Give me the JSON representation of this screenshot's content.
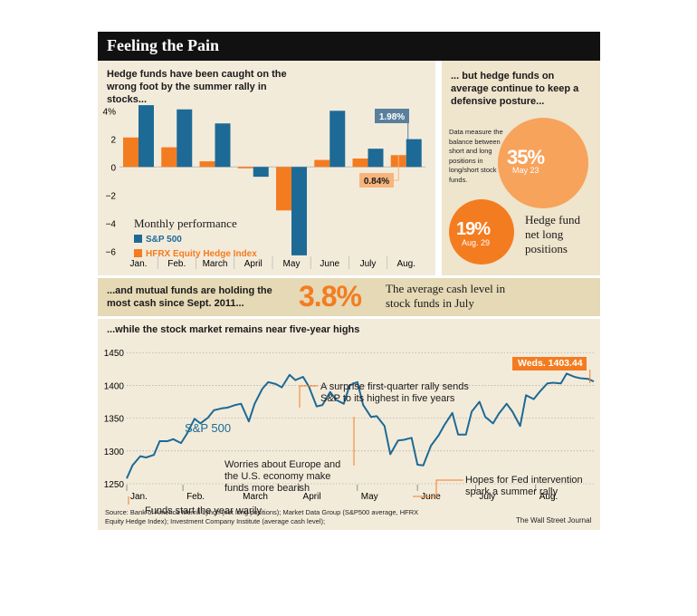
{
  "title": "Feeling the Pain",
  "left_heading": "Hedge funds have been caught on the wrong foot by the summer rally in stocks...",
  "right_heading": "... but hedge funds on average continue to keep a defensive posture...",
  "right_note": "Data measure the balance between short and long positions in long/short stock funds.",
  "bubbles": [
    {
      "value": "35%",
      "date": "May 23",
      "color": "#f7a35c"
    },
    {
      "value": "19%",
      "date": "Aug. 29",
      "color": "#f47c20"
    }
  ],
  "bubble_caption": "Hedge fund net long positions",
  "band_text": "...and mutual funds are holding the most cash since Sept. 2011...",
  "cash_value": "3.8%",
  "cash_caption": "The average cash level in stock funds in July",
  "bottom_heading": "...while the stock market remains near five-year highs",
  "source": "Source: Bank of America Merrill Lynch (net long positions); Market Data Group (S&P500 average, HFRX Equity Hedge Index); Investment Company Institute (average cash level);",
  "credit": "The Wall Street Journal",
  "colors": {
    "sp500": "#1d6a96",
    "hfrx": "#f47c20",
    "callout_blue": "#5a7f9c",
    "callout_orange": "#f7b47c"
  },
  "chart_data": [
    {
      "type": "bar",
      "title": "Monthly performance",
      "categories": [
        "Jan.",
        "Feb.",
        "March",
        "April",
        "May",
        "June",
        "July",
        "Aug."
      ],
      "series": [
        {
          "name": "S&P 500",
          "values": [
            4.4,
            4.1,
            3.1,
            -0.7,
            -6.3,
            4.0,
            1.3,
            1.98
          ]
        },
        {
          "name": "HFRX Equity Hedge Index",
          "values": [
            2.1,
            1.4,
            0.4,
            -0.1,
            -3.1,
            0.5,
            0.6,
            0.84
          ]
        }
      ],
      "yticks": [
        "4%",
        "2",
        "0",
        "−2",
        "−4",
        "−6"
      ],
      "yticks_values": [
        4,
        2,
        0,
        -2,
        -4,
        -6
      ],
      "ylim": [
        -6.5,
        4.6
      ],
      "callouts": [
        {
          "series": "S&P 500",
          "label": "1.98%"
        },
        {
          "series": "HFRX Equity Hedge Index",
          "label": "0.84%"
        }
      ]
    },
    {
      "type": "line",
      "series": [
        {
          "name": "S&P 500"
        }
      ],
      "line_label": "S&P 500",
      "x_labels": [
        "Jan.",
        "Feb.",
        "March",
        "April",
        "May",
        "June",
        "July",
        "Aug."
      ],
      "yticks": [
        1450,
        1400,
        1350,
        1300,
        1250
      ],
      "ylim": [
        1250,
        1460
      ],
      "x": [
        "Jan 3",
        "Jan 6",
        "Jan 10",
        "Jan 13",
        "Jan 17",
        "Jan 20",
        "Jan 24",
        "Jan 27",
        "Jan 31",
        "Feb 3",
        "Feb 7",
        "Feb 10",
        "Feb 14",
        "Feb 17",
        "Feb 21",
        "Feb 24",
        "Feb 28",
        "Mar 2",
        "Mar 6",
        "Mar 9",
        "Mar 13",
        "Mar 16",
        "Mar 20",
        "Mar 23",
        "Mar 27",
        "Mar 30",
        "Apr 3",
        "Apr 6",
        "Apr 10",
        "Apr 13",
        "Apr 17",
        "Apr 20",
        "Apr 24",
        "Apr 27",
        "May 1",
        "May 4",
        "May 8",
        "May 11",
        "May 15",
        "May 18",
        "May 22",
        "May 25",
        "May 29",
        "Jun 1",
        "Jun 4",
        "Jun 8",
        "Jun 12",
        "Jun 15",
        "Jun 19",
        "Jun 22",
        "Jun 26",
        "Jun 29",
        "Jul 3",
        "Jul 6",
        "Jul 10",
        "Jul 13",
        "Jul 17",
        "Jul 20",
        "Jul 24",
        "Jul 27",
        "Jul 31",
        "Aug 3",
        "Aug 7",
        "Aug 10",
        "Aug 14",
        "Aug 17",
        "Aug 21",
        "Aug 24",
        "Aug 28",
        "Aug 31"
      ],
      "values": [
        1258,
        1278,
        1292,
        1290,
        1294,
        1315,
        1315,
        1318,
        1312,
        1326,
        1349,
        1342,
        1351,
        1362,
        1365,
        1366,
        1370,
        1372,
        1345,
        1372,
        1395,
        1405,
        1402,
        1397,
        1416,
        1408,
        1413,
        1398,
        1368,
        1370,
        1390,
        1378,
        1372,
        1400,
        1405,
        1370,
        1352,
        1353,
        1338,
        1295,
        1316,
        1317,
        1320,
        1279,
        1278,
        1308,
        1324,
        1340,
        1358,
        1325,
        1325,
        1360,
        1375,
        1352,
        1342,
        1357,
        1372,
        1360,
        1338,
        1385,
        1379,
        1390,
        1403,
        1404,
        1403,
        1418,
        1413,
        1411,
        1410,
        1406
      ],
      "annotations": [
        {
          "text": "Weds. 1403.44",
          "x": "Aug 29"
        },
        {
          "text": "A surprise first-quarter rally sends S&P to its highest in five years",
          "x": "Apr 2"
        },
        {
          "text": "Worries about Europe and the U.S. economy make funds more bearish",
          "x": "May 1"
        },
        {
          "text": "Hopes for Fed intervention spark a summer rally",
          "x": "Jun 4"
        },
        {
          "text": "Funds start the year warily",
          "x": "Jan 3"
        }
      ]
    }
  ]
}
